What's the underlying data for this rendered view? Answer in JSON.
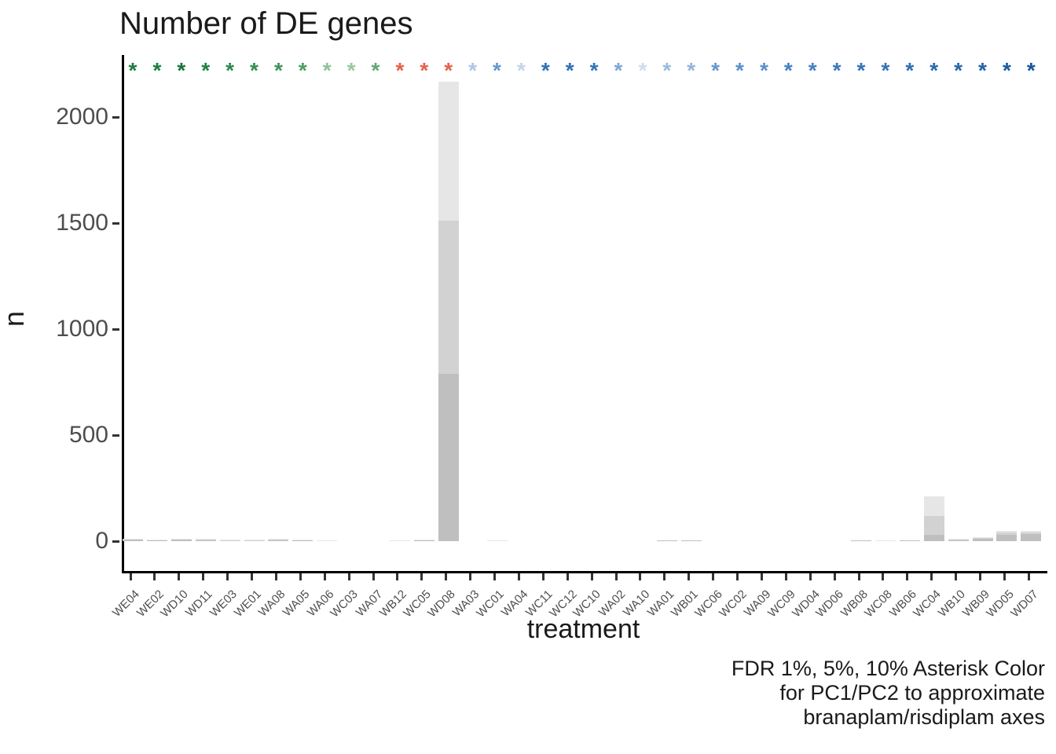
{
  "title": "Number of DE genes",
  "y_axis": {
    "label": "n"
  },
  "x_axis": {
    "label": "treatment"
  },
  "caption": {
    "lines": [
      "FDR 1%, 5%, 10% Asterisk Color",
      "for PC1/PC2 to approximate",
      "branaplam/risdiplam axes"
    ]
  },
  "chart_data": {
    "type": "bar",
    "stacked": true,
    "title": "Number of DE genes",
    "xlabel": "treatment",
    "ylabel": "n",
    "ylim": [
      0,
      2300
    ],
    "yticks": [
      0,
      500,
      1000,
      1500,
      2000
    ],
    "grid": false,
    "legend": "none",
    "segment_labels": [
      "FDR 1%",
      "FDR 5%",
      "FDR 10%"
    ],
    "segment_colors": [
      "#bfbfbf",
      "#d2d2d2",
      "#e6e6e6"
    ],
    "categories": [
      "WE04",
      "WE02",
      "WD10",
      "WD11",
      "WE03",
      "WE01",
      "WA08",
      "WA05",
      "WA06",
      "WC03",
      "WA07",
      "WB12",
      "WC05",
      "WD08",
      "WA03",
      "WC01",
      "WA04",
      "WC11",
      "WC12",
      "WC10",
      "WA02",
      "WA10",
      "WA01",
      "WB01",
      "WC06",
      "WC02",
      "WA09",
      "WC09",
      "WD04",
      "WD06",
      "WB08",
      "WC08",
      "WB06",
      "WC04",
      "WB10",
      "WB09",
      "WD05",
      "WD07"
    ],
    "cumulative_values": [
      [
        8,
        10,
        12
      ],
      [
        5,
        7,
        9
      ],
      [
        8,
        10,
        12
      ],
      [
        6,
        8,
        10
      ],
      [
        2,
        4,
        6
      ],
      [
        2,
        4,
        6
      ],
      [
        7,
        9,
        11
      ],
      [
        4,
        6,
        8
      ],
      [
        2,
        3,
        5
      ],
      [
        0,
        0,
        0
      ],
      [
        0,
        0,
        0
      ],
      [
        1,
        2,
        4
      ],
      [
        5,
        7,
        9
      ],
      [
        790,
        1510,
        2165
      ],
      [
        0,
        0,
        0
      ],
      [
        1,
        2,
        4
      ],
      [
        0,
        0,
        0
      ],
      [
        0,
        0,
        0
      ],
      [
        0,
        0,
        0
      ],
      [
        0,
        0,
        0
      ],
      [
        0,
        0,
        0
      ],
      [
        0,
        0,
        0
      ],
      [
        2,
        3,
        4
      ],
      [
        2,
        3,
        4
      ],
      [
        0,
        0,
        0
      ],
      [
        0,
        0,
        0
      ],
      [
        0,
        0,
        0
      ],
      [
        0,
        0,
        0
      ],
      [
        0,
        0,
        0
      ],
      [
        0,
        0,
        0
      ],
      [
        3,
        4,
        5
      ],
      [
        1,
        2,
        4
      ],
      [
        3,
        4,
        5
      ],
      [
        30,
        120,
        210
      ],
      [
        5,
        8,
        11
      ],
      [
        12,
        15,
        18
      ],
      [
        30,
        40,
        49
      ],
      [
        35,
        40,
        47
      ]
    ],
    "asterisk_symbol": "*",
    "asterisk_colors": [
      "#1b7e3e",
      "#1b7e3e",
      "#15753a",
      "#1f8242",
      "#2c8b4c",
      "#348f52",
      "#3d955a",
      "#4c9e64",
      "#8cc497",
      "#97c9a0",
      "#60a973",
      "#e6604b",
      "#e6604b",
      "#e6604b",
      "#adc6e6",
      "#6697cd",
      "#c3d4eb",
      "#2e72b8",
      "#2e72b8",
      "#3174b9",
      "#7ea7d8",
      "#cfdcef",
      "#9cbade",
      "#94b4dc",
      "#6697cd",
      "#5c90cb",
      "#5c90cb",
      "#4680c3",
      "#4680c3",
      "#3b79bd",
      "#3573ba",
      "#3573ba",
      "#2e6fb5",
      "#2a6bb0",
      "#2667ad",
      "#2162a9",
      "#1c5ca4",
      "#16559e"
    ]
  }
}
